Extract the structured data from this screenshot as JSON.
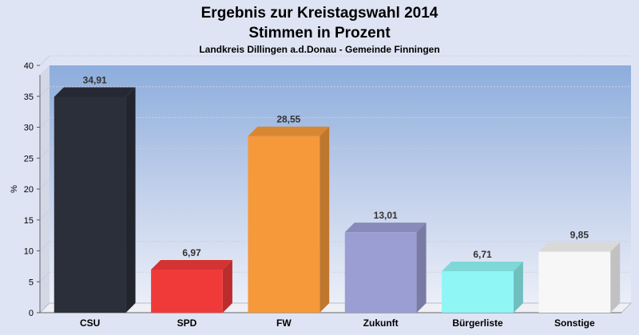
{
  "chart_data": {
    "type": "bar",
    "title": "Ergebnis zur Kreistagswahl 2014",
    "subtitle": "Stimmen in Prozent",
    "subtitle2": "Landkreis Dillingen a.d.Donau - Gemeinde Finningen",
    "ylabel": "%",
    "ylim": [
      0,
      40
    ],
    "yticks": [
      "0",
      "5",
      "10",
      "15",
      "20",
      "25",
      "30",
      "35",
      "40"
    ],
    "categories": [
      "CSU",
      "SPD",
      "FW",
      "Zukunft",
      "Bürgerliste",
      "Sonstige"
    ],
    "values": [
      34.91,
      6.97,
      28.55,
      13.01,
      6.71,
      9.85
    ],
    "value_labels": [
      "34,91",
      "6,97",
      "28,55",
      "13,01",
      "6,71",
      "9,85"
    ],
    "colors": [
      "#2b2f3a",
      "#f03a3a",
      "#f5993a",
      "#9b9ed2",
      "#8ff5f5",
      "#f7f7f7"
    ],
    "grid": true,
    "legend": "none"
  }
}
